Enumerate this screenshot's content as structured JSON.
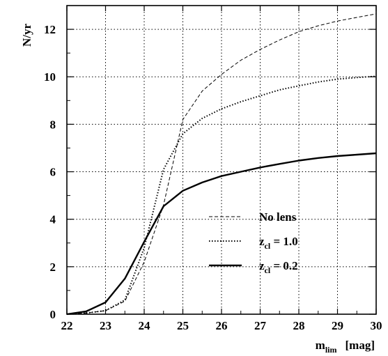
{
  "chart_data": {
    "type": "line",
    "title": "",
    "xlabel": {
      "main": "m",
      "sub": "lim",
      "unit": "[mag]"
    },
    "ylabel": "N/yr",
    "xlim": [
      22,
      30
    ],
    "ylim": [
      0,
      13
    ],
    "xticks": [
      "22",
      "23",
      "24",
      "25",
      "26",
      "27",
      "28",
      "29",
      "30"
    ],
    "yticks": [
      "0",
      "2",
      "4",
      "6",
      "8",
      "10",
      "12"
    ],
    "grid": true,
    "legend_position": "lower-right",
    "series": [
      {
        "name": "No lens",
        "legend": {
          "main": "No lens",
          "sub": "",
          "rest": ""
        },
        "style": "dashed",
        "x": [
          22,
          22.5,
          23,
          23.5,
          24,
          24.5,
          25,
          25.5,
          26,
          26.5,
          27,
          27.5,
          28,
          28.5,
          29,
          29.5,
          30
        ],
        "values": [
          0,
          0.05,
          0.15,
          0.55,
          2.2,
          4.6,
          8.2,
          9.4,
          10.1,
          10.7,
          11.15,
          11.55,
          11.9,
          12.15,
          12.35,
          12.5,
          12.65
        ]
      },
      {
        "name": "zcl = 1.0",
        "legend": {
          "main": "z",
          "sub": "cl",
          "rest": " = 1.0"
        },
        "style": "dotted",
        "x": [
          22,
          22.5,
          23,
          23.5,
          24,
          24.5,
          25,
          25.5,
          26,
          26.5,
          27,
          27.5,
          28,
          28.5,
          29,
          29.5,
          30
        ],
        "values": [
          0,
          0.05,
          0.15,
          0.6,
          2.8,
          6.1,
          7.6,
          8.25,
          8.65,
          8.95,
          9.2,
          9.45,
          9.62,
          9.78,
          9.9,
          9.97,
          10.02
        ]
      },
      {
        "name": "zcl = 0.2",
        "legend": {
          "main": "z",
          "sub": "cl",
          "rest": " = 0.2"
        },
        "style": "solid",
        "x": [
          22,
          22.5,
          23,
          23.5,
          24,
          24.5,
          25,
          25.5,
          26,
          26.5,
          27,
          27.5,
          28,
          28.5,
          29,
          29.5,
          30
        ],
        "values": [
          0,
          0.12,
          0.5,
          1.5,
          3.05,
          4.55,
          5.2,
          5.55,
          5.82,
          6.0,
          6.18,
          6.33,
          6.47,
          6.58,
          6.66,
          6.72,
          6.78
        ]
      }
    ]
  }
}
